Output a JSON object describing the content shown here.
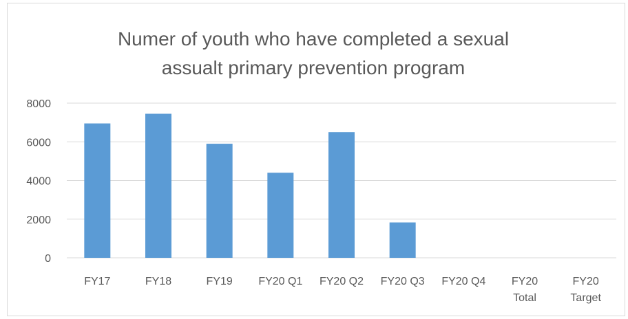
{
  "chart_data": {
    "type": "bar",
    "title": "Numer of youth who have completed a sexual assualt primary prevention program",
    "categories": [
      "FY17",
      "FY18",
      "FY19",
      "FY20 Q1",
      "FY20 Q2",
      "FY20 Q3",
      "FY20 Q4",
      "FY20 Total",
      "FY20 Target"
    ],
    "values": [
      6950,
      7450,
      5900,
      4400,
      6500,
      1830,
      null,
      null,
      null
    ],
    "color": "#5b9bd5",
    "ylim": [
      0,
      8000
    ],
    "yticks": [
      0,
      2000,
      4000,
      6000,
      8000
    ],
    "grid": true
  }
}
